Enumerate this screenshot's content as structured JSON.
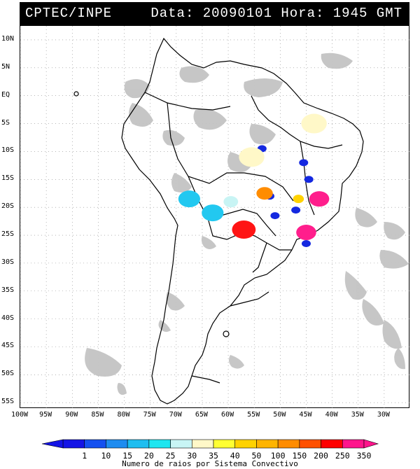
{
  "header": {
    "source": "CPTEC/INPE",
    "datetime": "Data: 20090101 Hora: 1945 GMT"
  },
  "map": {
    "lat_ticks": [
      "10N",
      "5N",
      "EQ",
      "5S",
      "10S",
      "15S",
      "20S",
      "25S",
      "30S",
      "35S",
      "40S",
      "45S",
      "50S",
      "55S"
    ],
    "lat_values": [
      10,
      5,
      0,
      -5,
      -10,
      -15,
      -20,
      -25,
      -30,
      -35,
      -40,
      -45,
      -50,
      -55
    ],
    "lon_ticks": [
      "100W",
      "95W",
      "90W",
      "85W",
      "80W",
      "75W",
      "70W",
      "65W",
      "60W",
      "55W",
      "50W",
      "45W",
      "40W",
      "35W",
      "30W"
    ],
    "lon_values": [
      -100,
      -95,
      -90,
      -85,
      -80,
      -75,
      -70,
      -65,
      -60,
      -55,
      -50,
      -45,
      -40,
      -35,
      -30
    ],
    "cloud_color": "#c4c4c4",
    "coast_color": "#000000",
    "grid_color": "#888888",
    "convective_systems": [
      {
        "lon": -53.5,
        "lat": -9.5,
        "class": "1",
        "color": "#1428e0"
      },
      {
        "lon": -52.0,
        "lat": -18.0,
        "class": "1",
        "color": "#1428e0"
      },
      {
        "lon": -45.5,
        "lat": -12.0,
        "class": "1",
        "color": "#1428e0"
      },
      {
        "lon": -44.5,
        "lat": -15.0,
        "class": "1",
        "color": "#1428e0"
      },
      {
        "lon": -47.0,
        "lat": -20.5,
        "class": "1",
        "color": "#1428e0"
      },
      {
        "lon": -51.0,
        "lat": -21.5,
        "class": "1",
        "color": "#1428e0"
      },
      {
        "lon": -45.0,
        "lat": -26.5,
        "class": "1",
        "color": "#1428e0"
      },
      {
        "lon": -63.0,
        "lat": -21.0,
        "class": "20",
        "color": "#22c8f0"
      },
      {
        "lon": -67.5,
        "lat": -18.5,
        "class": "20",
        "color": "#22c8f0"
      },
      {
        "lon": -59.5,
        "lat": -19.0,
        "class": "30",
        "color": "#c8f4f4"
      },
      {
        "lon": -55.5,
        "lat": -11.0,
        "class": "35",
        "color": "#fff8c8"
      },
      {
        "lon": -43.5,
        "lat": -5.0,
        "class": "35",
        "color": "#fff8c8"
      },
      {
        "lon": -46.5,
        "lat": -18.5,
        "class": "50",
        "color": "#ffd200"
      },
      {
        "lon": -53.0,
        "lat": -17.5,
        "class": "150",
        "color": "#ff8c00"
      },
      {
        "lon": -57.0,
        "lat": -24.0,
        "class": "250",
        "color": "#ff1414"
      },
      {
        "lon": -42.5,
        "lat": -18.5,
        "class": "350",
        "color": "#ff1e8c"
      },
      {
        "lon": -45.0,
        "lat": -24.5,
        "class": "350",
        "color": "#ff1e8c"
      }
    ]
  },
  "legend": {
    "labels": [
      "1",
      "10",
      "15",
      "20",
      "25",
      "30",
      "35",
      "40",
      "50",
      "100",
      "150",
      "200",
      "250",
      "350"
    ],
    "colors": [
      "#1414e6",
      "#1450f0",
      "#1e8cf0",
      "#1ebef0",
      "#1ee6f0",
      "#c8f5f5",
      "#fff8c8",
      "#ffff32",
      "#ffd200",
      "#ffb400",
      "#ff8c00",
      "#ff5000",
      "#ff0000",
      "#ff148c"
    ],
    "caption": "Numero de raios por Sistema Convectivo"
  }
}
